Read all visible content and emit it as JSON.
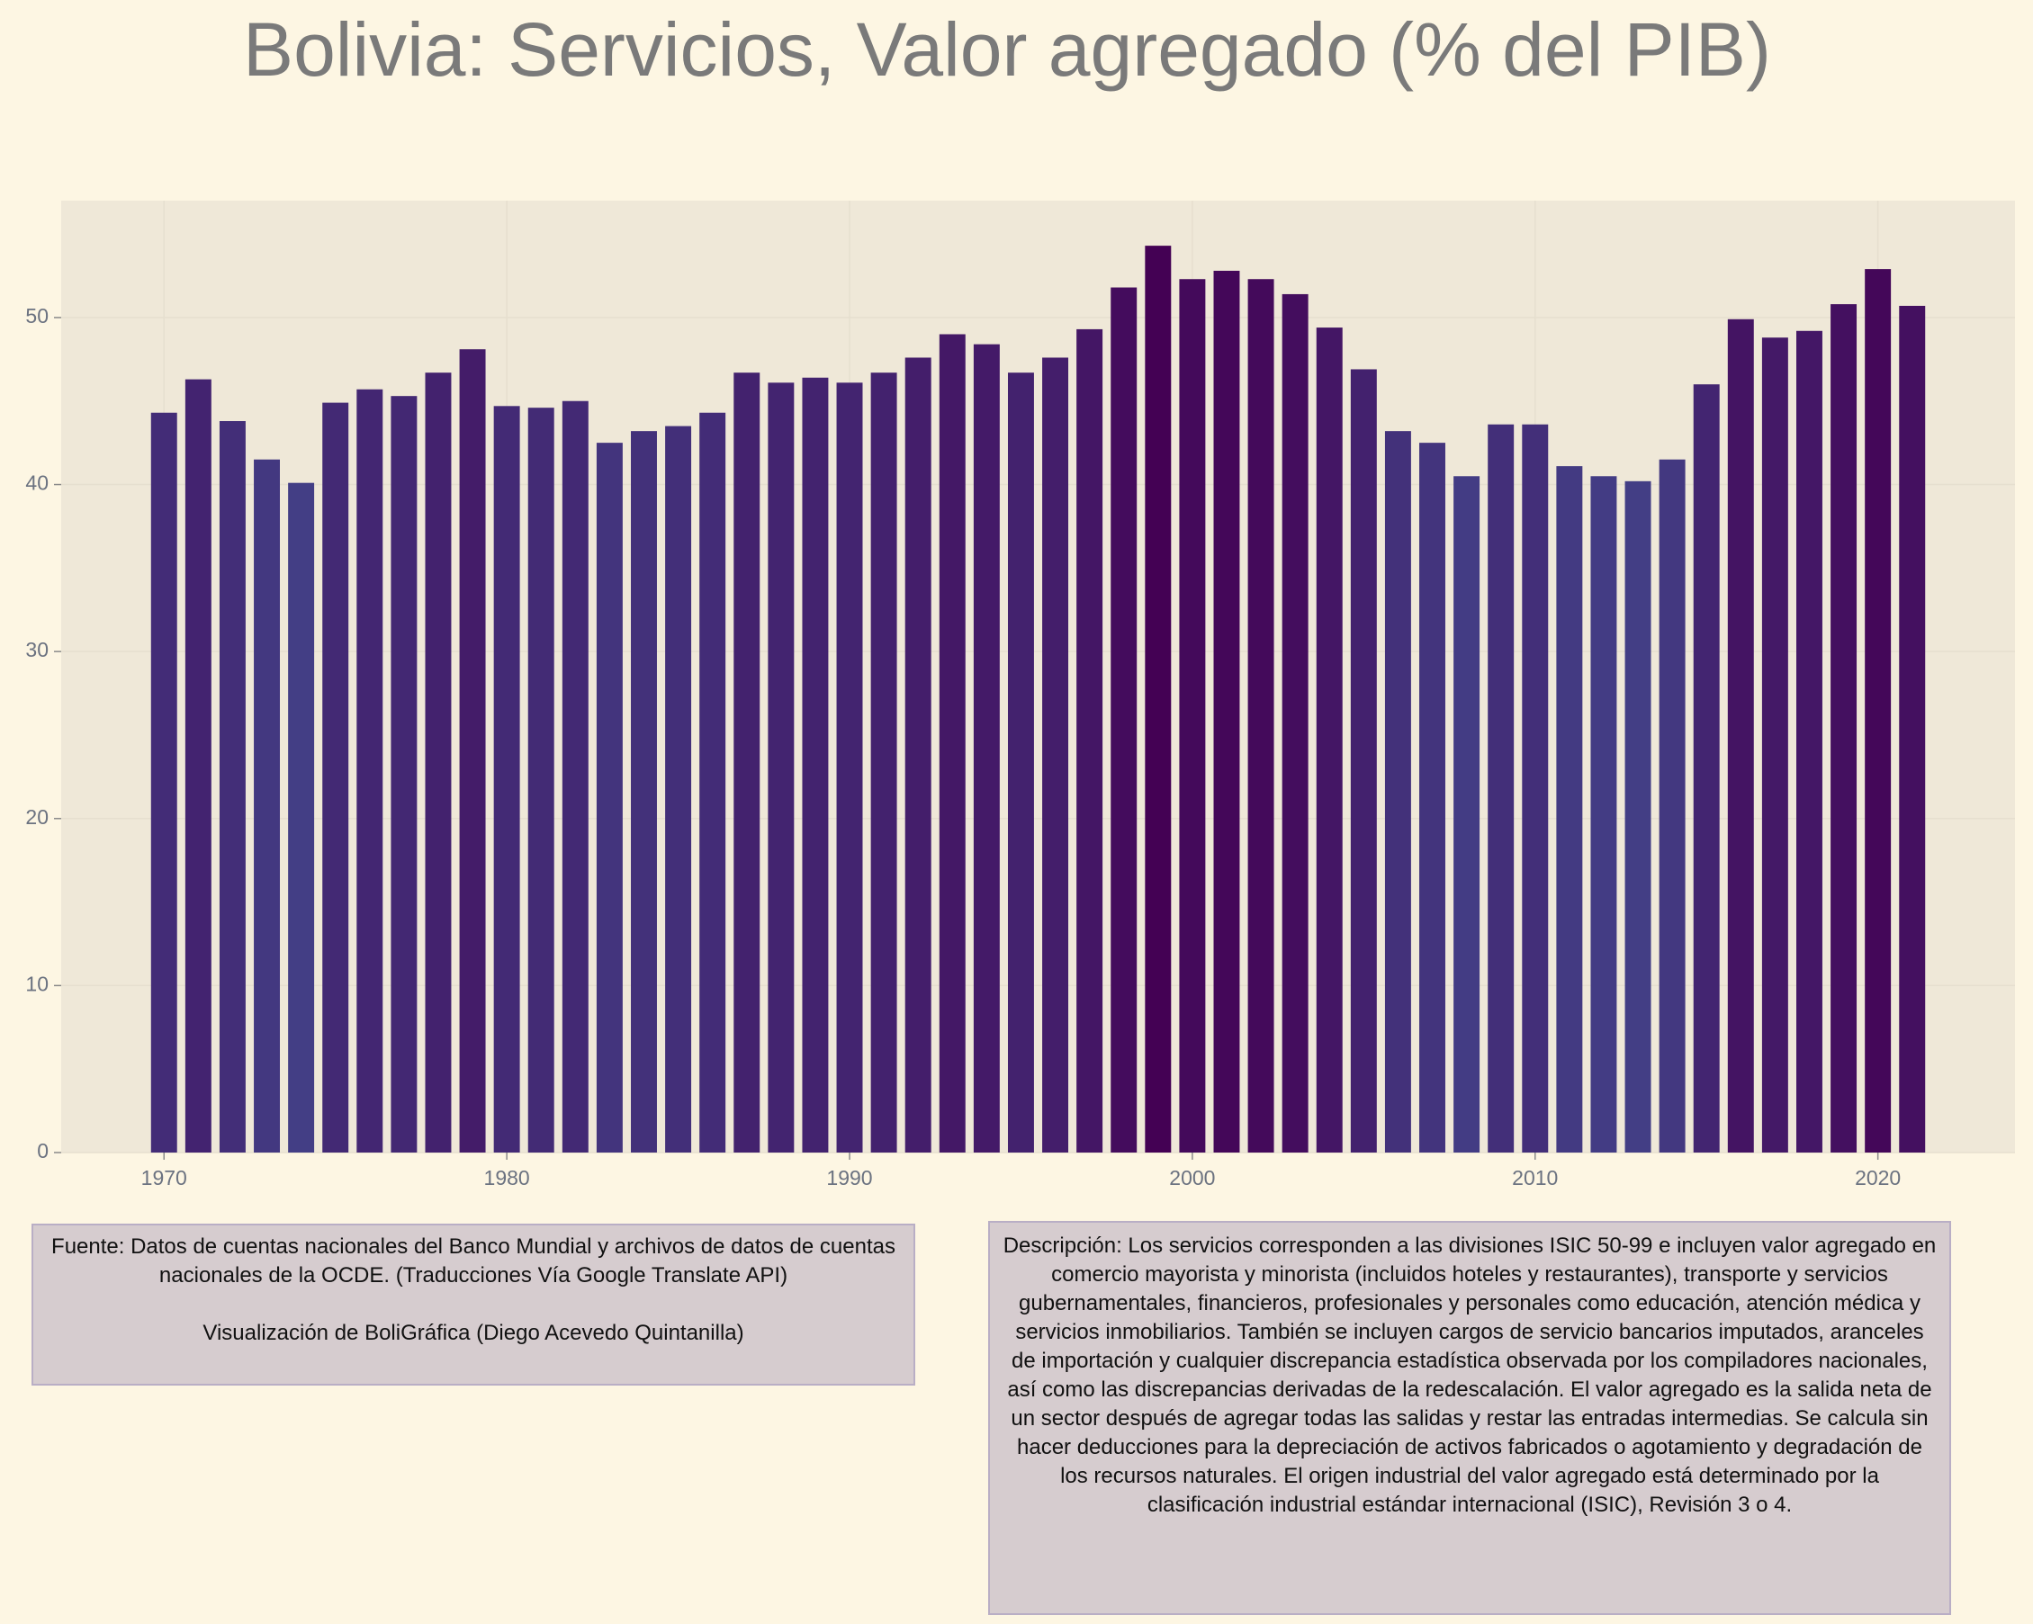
{
  "chart_data": {
    "type": "bar",
    "title": "Bolivia:  Servicios, Valor agregado (% del PIB)",
    "x": [
      1970,
      1971,
      1972,
      1973,
      1974,
      1975,
      1976,
      1977,
      1978,
      1979,
      1980,
      1981,
      1982,
      1983,
      1984,
      1985,
      1986,
      1987,
      1988,
      1989,
      1990,
      1991,
      1992,
      1993,
      1994,
      1995,
      1996,
      1997,
      1998,
      1999,
      2000,
      2001,
      2002,
      2003,
      2004,
      2005,
      2006,
      2007,
      2008,
      2009,
      2010,
      2011,
      2012,
      2013,
      2014,
      2015,
      2016,
      2017,
      2018,
      2019,
      2020,
      2021
    ],
    "values": [
      44.3,
      46.3,
      43.8,
      41.5,
      40.1,
      44.9,
      45.7,
      45.3,
      46.7,
      48.1,
      44.7,
      44.6,
      45.0,
      42.5,
      43.2,
      43.5,
      44.3,
      46.7,
      46.1,
      46.4,
      46.1,
      46.7,
      47.6,
      49.0,
      48.4,
      46.7,
      47.6,
      49.3,
      51.8,
      54.3,
      52.3,
      52.8,
      52.3,
      51.4,
      49.4,
      46.9,
      43.2,
      42.5,
      40.5,
      43.6,
      43.6,
      41.1,
      40.5,
      40.2,
      41.5,
      46.0,
      49.9,
      48.8,
      49.2,
      50.8,
      52.9,
      50.7
    ],
    "color_low": "#433e85",
    "color_high": "#440154",
    "xlim": [
      1967,
      2024
    ],
    "xticks": [
      1970,
      1980,
      1990,
      2000,
      2010,
      2020
    ],
    "ylim": [
      0,
      57
    ],
    "yticks": [
      0,
      10,
      20,
      30,
      40,
      50
    ],
    "grid": true,
    "source": "Fuente: Datos de cuentas nacionales del Banco Mundial y archivos de datos de cuentas nacionales de la OCDE. (Traducciones Vía Google Translate API)",
    "credit": "Visualización de BoliGráfica (Diego Acevedo Quintanilla)",
    "description": "Descripción: Los servicios corresponden a las divisiones ISIC 50-99 e incluyen valor agregado en comercio mayorista y minorista (incluidos hoteles y restaurantes), transporte y servicios gubernamentales, financieros, profesionales y personales como educación, atención médica y servicios inmobiliarios. También se incluyen cargos de servicio bancarios imputados, aranceles de importación y cualquier discrepancia estadística observada por los compiladores nacionales, así como las discrepancias derivadas de la redescalación. El valor agregado es la salida neta de un sector después de agregar todas las salidas y restar las entradas intermedias. Se calcula sin hacer deducciones para la depreciación de activos fabricados o agotamiento y degradación de los recursos naturales. El origen industrial del valor agregado está determinado por la clasificación industrial estándar internacional (ISIC), Revisión 3 o 4."
  }
}
